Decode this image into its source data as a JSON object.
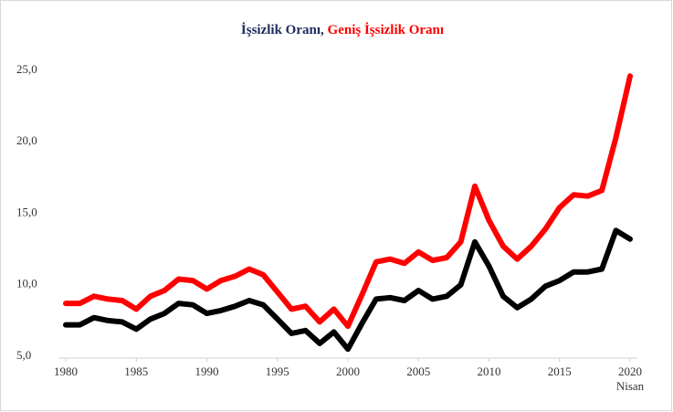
{
  "chart_data": {
    "type": "line",
    "title_separator": ", ",
    "x": [
      1980,
      1981,
      1982,
      1983,
      1984,
      1985,
      1986,
      1987,
      1988,
      1989,
      1990,
      1991,
      1992,
      1993,
      1994,
      1995,
      1996,
      1997,
      1998,
      1999,
      2000,
      2001,
      2002,
      2003,
      2004,
      2005,
      2006,
      2007,
      2008,
      2009,
      2010,
      2011,
      2012,
      2013,
      2014,
      2015,
      2016,
      2017,
      2018,
      2019,
      2020
    ],
    "series": [
      {
        "name": "İşsizlik Oranı",
        "color": "#000000",
        "title_color": "#1f2a5c",
        "values": [
          7.2,
          7.2,
          7.7,
          7.5,
          7.4,
          6.9,
          7.6,
          8.0,
          8.7,
          8.6,
          8.0,
          8.2,
          8.5,
          8.9,
          8.6,
          7.6,
          6.6,
          6.8,
          5.9,
          6.7,
          5.5,
          7.3,
          9.0,
          9.1,
          8.9,
          9.6,
          9.0,
          9.2,
          10.0,
          13.0,
          11.3,
          9.2,
          8.4,
          9.0,
          9.9,
          10.3,
          10.9,
          10.9,
          11.1,
          13.8,
          13.2
        ]
      },
      {
        "name": "Geniş İşsizlik Oranı",
        "color": "#ff0000",
        "title_color": "#ff0000",
        "values": [
          8.7,
          8.7,
          9.2,
          9.0,
          8.9,
          8.3,
          9.2,
          9.6,
          10.4,
          10.3,
          9.7,
          10.3,
          10.6,
          11.1,
          10.7,
          9.5,
          8.3,
          8.5,
          7.4,
          8.3,
          7.1,
          9.3,
          11.6,
          11.8,
          11.5,
          12.3,
          11.7,
          11.9,
          13.0,
          16.9,
          14.5,
          12.7,
          11.8,
          12.7,
          13.9,
          15.4,
          16.3,
          16.2,
          16.6,
          20.3,
          24.6
        ]
      }
    ],
    "xlim": [
      1980,
      2020
    ],
    "xticks": [
      1980,
      1985,
      1990,
      1995,
      2000,
      2005,
      2010,
      2015,
      {
        "value": 2020,
        "label": "2020 Nisan"
      }
    ],
    "ylim": [
      5,
      25
    ],
    "yticks": [
      {
        "value": 5,
        "label": "5,0"
      },
      {
        "value": 10,
        "label": "10,0"
      },
      {
        "value": 15,
        "label": "15,0"
      },
      {
        "value": 20,
        "label": "20,0"
      },
      {
        "value": 25,
        "label": "25,0"
      }
    ],
    "grid": false
  }
}
